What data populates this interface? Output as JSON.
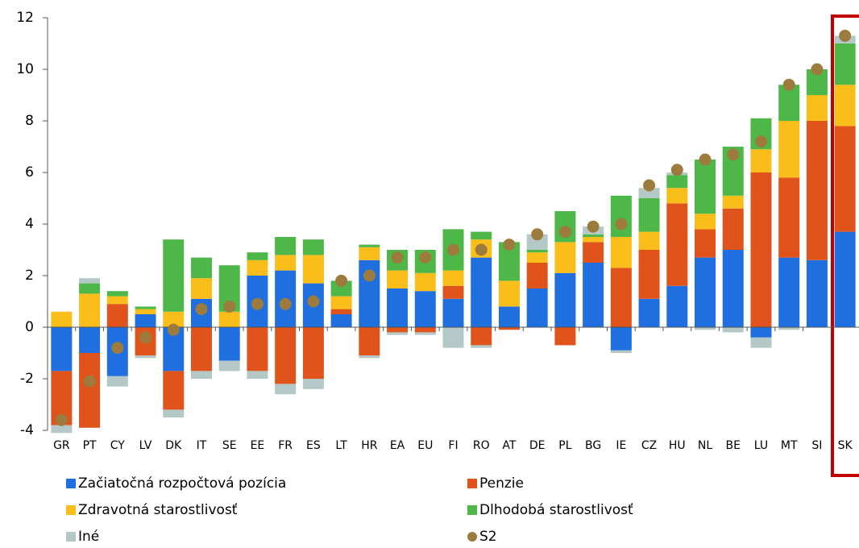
{
  "chart_data": {
    "type": "stacked_bar",
    "categories": [
      "GR",
      "PT",
      "CY",
      "LV",
      "DK",
      "IT",
      "SE",
      "EE",
      "FR",
      "ES",
      "LT",
      "HR",
      "EA",
      "EU",
      "FI",
      "RO",
      "AT",
      "DE",
      "PL",
      "BG",
      "IE",
      "CZ",
      "HU",
      "NL",
      "BE",
      "LU",
      "MT",
      "SI",
      "SK"
    ],
    "series": [
      {
        "name": "Začiatočná rozpočtová pozícia",
        "color": "#1f6fe0",
        "values": [
          -1.7,
          -1.0,
          -1.9,
          0.5,
          -1.7,
          1.1,
          -1.3,
          2.0,
          2.2,
          1.7,
          0.5,
          2.6,
          1.5,
          1.4,
          1.1,
          2.7,
          0.8,
          1.5,
          2.1,
          2.5,
          -0.9,
          1.1,
          1.6,
          2.7,
          3.0,
          -0.4,
          2.7,
          2.6,
          3.7
        ]
      },
      {
        "name": "Penzie",
        "color": "#e0541c",
        "values": [
          -2.1,
          -2.9,
          0.9,
          -1.1,
          -1.5,
          -1.7,
          0,
          -1.7,
          -2.2,
          -2.0,
          0.2,
          -1.1,
          -0.2,
          -0.2,
          0.5,
          -0.7,
          -0.1,
          1.0,
          -0.7,
          0.8,
          2.3,
          1.9,
          3.2,
          1.1,
          1.6,
          6.0,
          3.1,
          5.4,
          4.1
        ]
      },
      {
        "name": "Zdravotná starostlivosť",
        "color": "#fbbd1a",
        "values": [
          0.6,
          1.3,
          0.3,
          0.2,
          0.6,
          0.8,
          0.6,
          0.6,
          0.6,
          1.1,
          0.5,
          0.5,
          0.7,
          0.7,
          0.6,
          0.7,
          1.0,
          0.4,
          1.2,
          0.2,
          1.2,
          0.7,
          0.6,
          0.6,
          0.5,
          0.9,
          2.2,
          1.0,
          1.6
        ]
      },
      {
        "name": "Dlhodobá starostlivosť",
        "color": "#4db848",
        "values": [
          0,
          0.4,
          0.2,
          0.1,
          2.8,
          0.8,
          1.8,
          0.3,
          0.7,
          0.6,
          0.6,
          0.1,
          0.8,
          0.9,
          1.6,
          0.3,
          1.5,
          0.1,
          1.2,
          0.1,
          1.6,
          1.3,
          0.5,
          2.1,
          1.9,
          1.2,
          1.4,
          1.0,
          1.6
        ]
      },
      {
        "name": "Iné",
        "color": "#b4c8c8",
        "values": [
          -0.3,
          0.2,
          -0.4,
          -0.1,
          -0.3,
          -0.3,
          -0.4,
          -0.3,
          -0.4,
          -0.4,
          0,
          -0.1,
          -0.1,
          -0.1,
          -0.8,
          -0.1,
          0,
          0.6,
          0,
          0.3,
          -0.1,
          0.4,
          0.1,
          -0.1,
          -0.2,
          -0.4,
          -0.1,
          0,
          0.3
        ]
      }
    ],
    "dots": {
      "name": "S2",
      "color": "#9c7b3c",
      "values": [
        -3.6,
        -2.1,
        -0.8,
        -0.4,
        -0.1,
        0.7,
        0.8,
        0.9,
        0.9,
        1.0,
        1.8,
        2.0,
        2.7,
        2.7,
        3.0,
        3.0,
        3.2,
        3.6,
        3.7,
        3.9,
        4.0,
        5.5,
        6.1,
        6.5,
        6.7,
        7.2,
        9.4,
        10.0,
        11.3
      ]
    },
    "ylim": [
      -4,
      12
    ],
    "yticks": [
      -4,
      -2,
      0,
      2,
      4,
      6,
      8,
      10,
      12
    ]
  }
}
